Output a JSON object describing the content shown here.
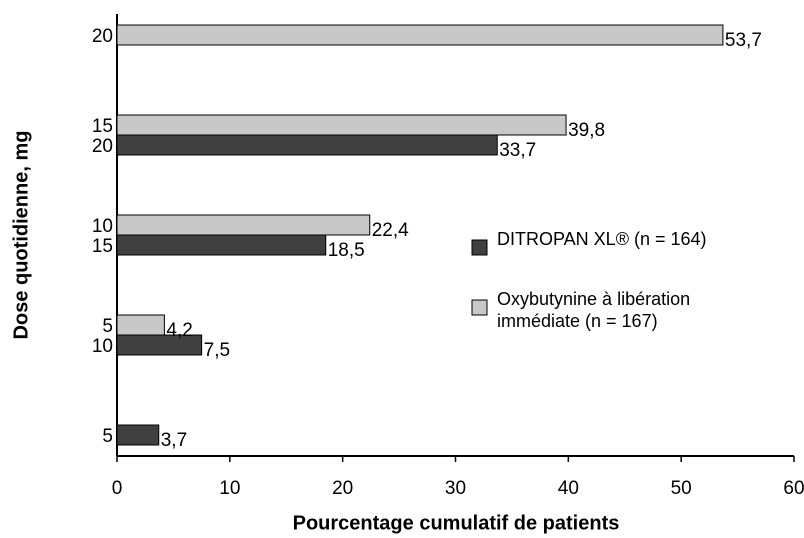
{
  "chart_data": {
    "type": "bar",
    "orientation": "horizontal",
    "x_label": "Pourcentage cumulatif  de patients",
    "y_label": "Dose quotidienne, mg",
    "xlim": [
      0,
      60
    ],
    "xticks": [
      0,
      10,
      20,
      30,
      40,
      50,
      60
    ],
    "legend": "right",
    "series": [
      {
        "name": "DITROPAN XL® (n = 164)",
        "color": "#404040",
        "labels": [
          5,
          10,
          15,
          20,
          null
        ],
        "values": [
          3.7,
          7.5,
          18.5,
          33.7,
          null
        ],
        "value_labels": [
          "3,7",
          "7,5",
          "18,5",
          "33,7",
          null
        ]
      },
      {
        "name": "Oxybutynine à libération immédiate (n = 167)",
        "color": "#c8c8c8",
        "labels": [
          null,
          5,
          10,
          15,
          20
        ],
        "values": [
          null,
          4.2,
          22.4,
          39.8,
          53.7
        ],
        "value_labels": [
          null,
          "4,2",
          "22,4",
          "39,8",
          "53,7"
        ]
      }
    ]
  }
}
